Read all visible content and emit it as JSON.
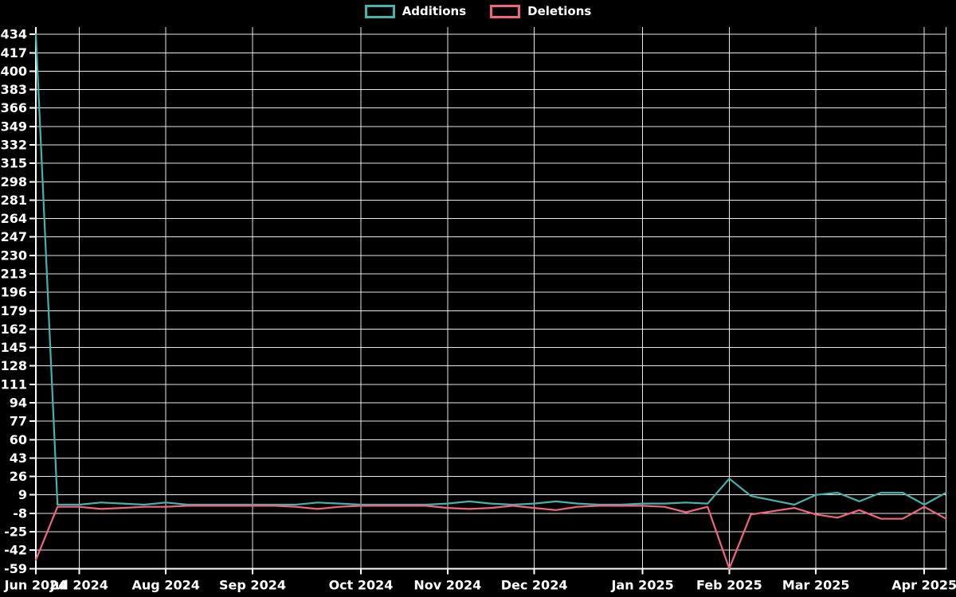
{
  "chart_data": {
    "type": "line",
    "title": "",
    "legend": [
      "Additions",
      "Deletions"
    ],
    "background_color": "#000000",
    "grid": true,
    "grid_color": "#ffffff",
    "text_color": "#ffffff",
    "legend_position": "top-center",
    "x_unit": "week",
    "n_points": 43,
    "ylim": [
      -59,
      434
    ],
    "y_ticks": [
      434,
      417,
      400,
      383,
      366,
      349,
      332,
      315,
      298,
      281,
      264,
      247,
      230,
      213,
      196,
      179,
      162,
      145,
      128,
      111,
      94,
      77,
      60,
      43,
      26,
      9,
      -8,
      -25,
      -42,
      -59
    ],
    "x_ticks": [
      {
        "label": "Jun 2024",
        "week": 0
      },
      {
        "label": "Jul 2024",
        "week": 2
      },
      {
        "label": "Aug 2024",
        "week": 6
      },
      {
        "label": "Sep 2024",
        "week": 10
      },
      {
        "label": "Oct 2024",
        "week": 15
      },
      {
        "label": "Nov 2024",
        "week": 19
      },
      {
        "label": "Dec 2024",
        "week": 23
      },
      {
        "label": "Jan 2025",
        "week": 28
      },
      {
        "label": "Feb 2025",
        "week": 32
      },
      {
        "label": "Mar 2025",
        "week": 36
      },
      {
        "label": "Apr 2025",
        "week": 41
      }
    ],
    "series": [
      {
        "name": "Additions",
        "color": "#43b3ae",
        "values": [
          434,
          0,
          0,
          2,
          1,
          0,
          2,
          0,
          0,
          0,
          0,
          0,
          0,
          2,
          1,
          0,
          0,
          0,
          0,
          1,
          3,
          1,
          0,
          1,
          3,
          1,
          0,
          0,
          1,
          1,
          2,
          1,
          24,
          8,
          4,
          0,
          9,
          11,
          3,
          11,
          11,
          0,
          11
        ]
      },
      {
        "name": "Deletions",
        "color": "#f0647f",
        "values": [
          -51,
          -2,
          -2,
          -4,
          -3,
          -2,
          -2,
          -1,
          -1,
          -1,
          -1,
          -1,
          -2,
          -4,
          -2,
          -1,
          -1,
          -1,
          -1,
          -3,
          -4,
          -3,
          -1,
          -3,
          -5,
          -2,
          -1,
          -1,
          -1,
          -2,
          -7,
          -2,
          -59,
          -9,
          -6,
          -3,
          -9,
          -12,
          -5,
          -13,
          -13,
          -2,
          -13
        ]
      }
    ]
  }
}
